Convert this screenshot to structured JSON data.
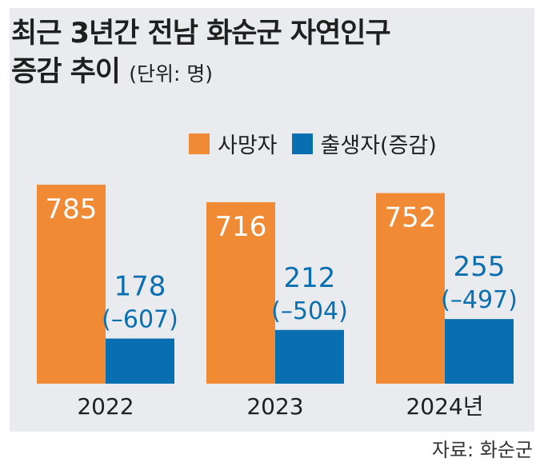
{
  "title_line1": "최근 3년간 전남 화순군 자연인구",
  "title_line2": "증감 추이",
  "unit": "(단위: 명)",
  "source": "자료: 화순군",
  "colors": {
    "deaths": "#f08a35",
    "births": "#0a6fb0",
    "panel": "#e9ebee"
  },
  "chart_data": {
    "type": "bar",
    "categories": [
      "2022",
      "2023",
      "2024년"
    ],
    "series": [
      {
        "name": "사망자",
        "values": [
          785,
          716,
          752
        ]
      },
      {
        "name": "출생자(증감)",
        "values": [
          178,
          212,
          255
        ],
        "annotations": [
          "(–607)",
          "(–504)",
          "(–497)"
        ]
      }
    ],
    "ylim": [
      0,
      820
    ],
    "grid": false,
    "legend": "top-right"
  }
}
